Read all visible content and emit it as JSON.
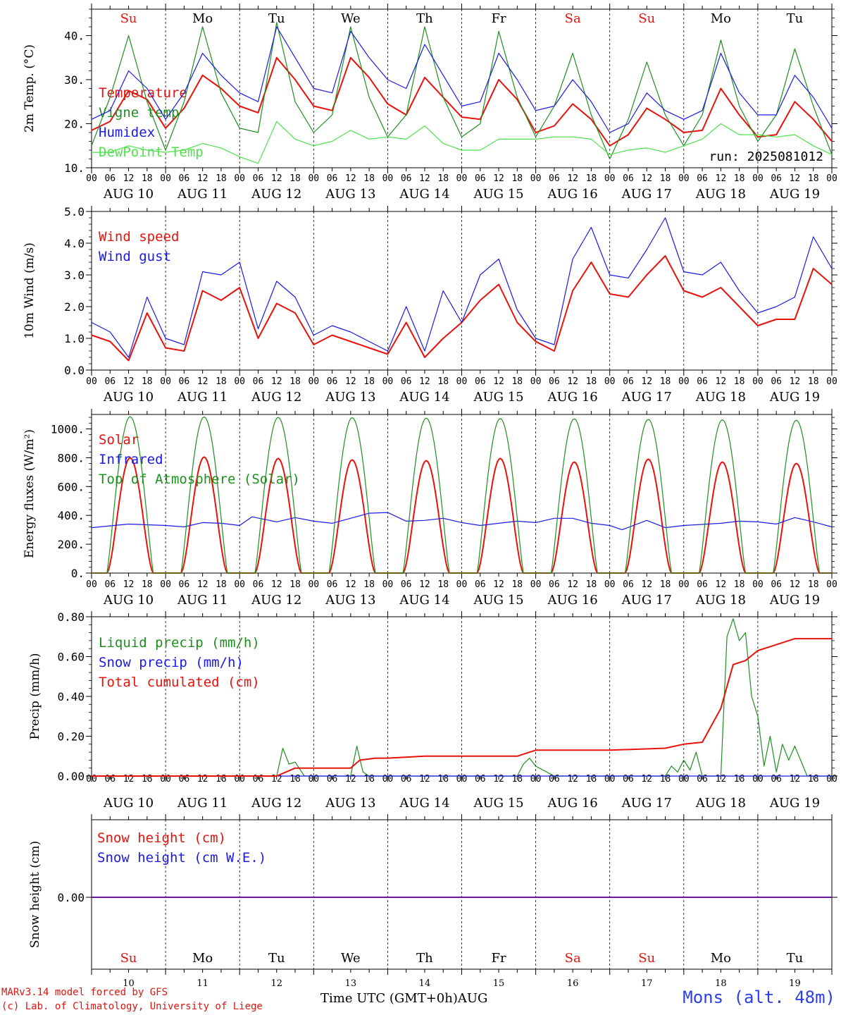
{
  "colors": {
    "red": "#e8120c",
    "green": "#1e8f1e",
    "blue": "#1a1ae6",
    "lightgreen": "#4ee24e",
    "weekend": "#e8120c",
    "weekday": "#000000"
  },
  "days": [
    "Su",
    "Mo",
    "Tu",
    "We",
    "Th",
    "Fr",
    "Sa",
    "Su",
    "Mo",
    "Tu"
  ],
  "weekend_flags": [
    true,
    false,
    false,
    false,
    false,
    false,
    true,
    true,
    false,
    false
  ],
  "date_labels": [
    "AUG 10",
    "AUG 11",
    "AUG 12",
    "AUG 13",
    "AUG 14",
    "AUG 15",
    "AUG 16",
    "AUG 17",
    "AUG 18",
    "AUG 19"
  ],
  "hour_ticks": [
    "00",
    "06",
    "12",
    "18"
  ],
  "end_tick": "00",
  "bottom_day_numbers": [
    "10",
    "11",
    "12",
    "13",
    "14",
    "15",
    "16",
    "17",
    "18",
    "19"
  ],
  "footer": {
    "model_line": "MARv3.14 model forced by GFS",
    "credit_line": "(c) Lab. of Climatology, University of Liege",
    "xlabel": "Time UTC (GMT+0h)",
    "month": "AUG",
    "station": "Mons (alt. 48m)"
  },
  "chart_data": [
    {
      "type": "line",
      "ylabel": "2m Temp. (°C)",
      "ylim": [
        10,
        46
      ],
      "yticks": [
        "10.",
        "20.",
        "30.",
        "40."
      ],
      "ytick_values": [
        10,
        20,
        30,
        40
      ],
      "annotation": "run: 2025081012",
      "x_unit": "hours since AUG 10 00 UTC",
      "x": [
        0,
        6,
        12,
        18,
        24,
        30,
        36,
        42,
        48,
        54,
        60,
        66,
        72,
        78,
        84,
        90,
        96,
        102,
        108,
        114,
        120,
        126,
        132,
        138,
        144,
        150,
        156,
        162,
        168,
        174,
        180,
        186,
        192,
        198,
        204,
        210,
        216,
        222,
        228,
        234,
        240
      ],
      "series": [
        {
          "name": "Temperature",
          "color": "red",
          "values": [
            18.5,
            20.5,
            27.5,
            25.5,
            19,
            23.5,
            31,
            28,
            24,
            22.5,
            35,
            30,
            24,
            23,
            35,
            30.5,
            24.5,
            22,
            30.5,
            26,
            21.5,
            21,
            30,
            25.5,
            18,
            19.5,
            24.5,
            21,
            15,
            17.5,
            23.5,
            21,
            18,
            18.5,
            28,
            22,
            17,
            17.5,
            25,
            21,
            16
          ]
        },
        {
          "name": "Vigne temp",
          "color": "green",
          "values": [
            15,
            26,
            40,
            25,
            14,
            25,
            42,
            27,
            19,
            18,
            43,
            25,
            18,
            22,
            42,
            26,
            17,
            22,
            42,
            26,
            17,
            20,
            41,
            26,
            17,
            24,
            36,
            22,
            12,
            21,
            34,
            22,
            15,
            22,
            39,
            24,
            16,
            22,
            37,
            24,
            13
          ]
        },
        {
          "name": "Humidex",
          "color": "blue",
          "values": [
            21,
            23,
            32,
            28,
            21,
            27,
            36,
            31,
            27,
            25,
            42,
            35,
            28,
            27,
            41,
            35,
            30,
            28,
            38,
            31,
            24,
            25,
            36,
            30,
            23,
            24,
            30,
            25,
            18,
            20,
            27,
            23,
            21,
            23,
            36,
            27,
            22,
            22,
            31,
            26,
            19
          ]
        },
        {
          "name": "DewPoint Temp",
          "color": "lightgreen",
          "values": [
            13.5,
            13.5,
            15,
            14,
            13.5,
            14,
            15.5,
            14.5,
            12.5,
            11,
            20.5,
            16.5,
            15,
            16,
            18.5,
            16.5,
            17,
            16.5,
            19.5,
            15.5,
            14,
            14,
            16.5,
            16.5,
            16.5,
            17,
            17,
            16.5,
            13,
            14,
            14.5,
            13.5,
            15,
            16.5,
            20,
            17.5,
            17.5,
            17,
            17.5,
            15,
            13
          ]
        }
      ]
    },
    {
      "type": "line",
      "ylabel": "10m Wind (m/s)",
      "ylim": [
        0,
        5
      ],
      "yticks": [
        "0.0",
        "1.0",
        "2.0",
        "3.0",
        "4.0",
        "5.0"
      ],
      "ytick_values": [
        0,
        1,
        2,
        3,
        4,
        5
      ],
      "x_unit": "hours since AUG 10 00 UTC",
      "x": [
        0,
        6,
        12,
        18,
        24,
        30,
        36,
        42,
        48,
        54,
        60,
        66,
        72,
        78,
        84,
        90,
        96,
        102,
        108,
        114,
        120,
        126,
        132,
        138,
        144,
        150,
        156,
        162,
        168,
        174,
        180,
        186,
        192,
        198,
        204,
        210,
        216,
        222,
        228,
        234,
        240
      ],
      "series": [
        {
          "name": "Wind speed",
          "color": "red",
          "values": [
            1.1,
            0.9,
            0.3,
            1.8,
            0.7,
            0.6,
            2.5,
            2.2,
            2.6,
            1.0,
            2.1,
            1.8,
            0.8,
            1.1,
            0.9,
            0.7,
            0.5,
            1.5,
            0.4,
            1.0,
            1.5,
            2.2,
            2.7,
            1.5,
            0.9,
            0.6,
            2.5,
            3.4,
            2.4,
            2.3,
            3.0,
            3.6,
            2.5,
            2.3,
            2.6,
            2.0,
            1.4,
            1.6,
            1.6,
            3.2,
            2.7
          ]
        },
        {
          "name": "Wind gust",
          "color": "blue",
          "values": [
            1.5,
            1.2,
            0.4,
            2.3,
            1.0,
            0.8,
            3.1,
            3.0,
            3.4,
            1.3,
            2.8,
            2.3,
            1.1,
            1.4,
            1.2,
            0.9,
            0.6,
            2.0,
            0.6,
            2.5,
            1.5,
            3.0,
            3.5,
            1.9,
            1.0,
            0.8,
            3.5,
            4.5,
            3.0,
            2.9,
            3.8,
            4.8,
            3.1,
            3.0,
            3.4,
            2.5,
            1.8,
            2.0,
            2.3,
            4.2,
            3.2
          ]
        }
      ]
    },
    {
      "type": "line",
      "ylabel": "Energy fluxes (W/m²)",
      "ylim": [
        0,
        1100
      ],
      "yticks": [
        "0.",
        "200.",
        "400.",
        "600.",
        "800.",
        "1000."
      ],
      "ytick_values": [
        0,
        200,
        400,
        600,
        800,
        1000
      ],
      "x_unit": "hours since AUG 10 00 UTC",
      "peaks": {
        "solar": [
          800,
          805,
          795,
          785,
          780,
          795,
          770,
          790,
          770,
          760
        ],
        "toa": [
          1085,
          1083,
          1080,
          1078,
          1075,
          1072,
          1070,
          1066,
          1063,
          1060
        ]
      },
      "daylight_hours": [
        5,
        20
      ],
      "series": [
        {
          "name": "Solar",
          "color": "red",
          "values": []
        },
        {
          "name": "Infrared",
          "color": "blue",
          "x": [
            0,
            12,
            24,
            30,
            36,
            42,
            48,
            52,
            60,
            66,
            72,
            78,
            84,
            90,
            96,
            102,
            108,
            114,
            120,
            126,
            132,
            138,
            144,
            150,
            156,
            162,
            168,
            172,
            180,
            186,
            192,
            196,
            204,
            210,
            216,
            222,
            228,
            234,
            240
          ],
          "values": [
            315,
            340,
            330,
            320,
            350,
            345,
            330,
            390,
            355,
            385,
            360,
            345,
            380,
            415,
            420,
            360,
            365,
            380,
            350,
            330,
            345,
            360,
            350,
            380,
            380,
            345,
            330,
            300,
            365,
            315,
            330,
            335,
            345,
            360,
            355,
            340,
            385,
            355,
            320
          ]
        },
        {
          "name": "Top of Atmosphere (Solar)",
          "color": "green",
          "values": []
        }
      ]
    },
    {
      "type": "line",
      "ylabel": "Precip (mm/h)",
      "ylim": [
        0,
        0.8
      ],
      "yticks": [
        "0.00",
        "0.20",
        "0.40",
        "0.60",
        "0.80"
      ],
      "ytick_values": [
        0,
        0.2,
        0.4,
        0.6,
        0.8
      ],
      "x_unit": "hours since AUG 10 00 UTC",
      "series": [
        {
          "name": "Liquid precip (mm/h)",
          "color": "green",
          "x": [
            0,
            60,
            62,
            64,
            66,
            69,
            72,
            84,
            86,
            88,
            90,
            96,
            138,
            140,
            142,
            144,
            150,
            168,
            186,
            188,
            190,
            192,
            194,
            196,
            198,
            204,
            206,
            208,
            210,
            212,
            214,
            216,
            218,
            220,
            222,
            224,
            226,
            228,
            232,
            234,
            240
          ],
          "values": [
            0,
            0,
            0.14,
            0.06,
            0.07,
            0,
            0,
            0,
            0.15,
            0.02,
            0,
            0,
            0,
            0.06,
            0.09,
            0.05,
            0,
            0,
            0,
            0.05,
            0.02,
            0.08,
            0.03,
            0.12,
            0,
            0,
            0.7,
            0.79,
            0.68,
            0.72,
            0.4,
            0.3,
            0.05,
            0.2,
            0.02,
            0.16,
            0.08,
            0.15,
            0,
            0,
            0
          ]
        },
        {
          "name": "Snow precip (mm/h)",
          "color": "blue",
          "x": [
            0,
            240
          ],
          "values": [
            0,
            0
          ]
        },
        {
          "name": "Total cumulated (cm)",
          "color": "red",
          "x": [
            0,
            60,
            66,
            72,
            84,
            87,
            92,
            96,
            108,
            120,
            138,
            144,
            150,
            168,
            186,
            192,
            198,
            204,
            208,
            212,
            216,
            220,
            228,
            240
          ],
          "values": [
            0,
            0,
            0.04,
            0.04,
            0.04,
            0.08,
            0.09,
            0.09,
            0.1,
            0.1,
            0.1,
            0.13,
            0.13,
            0.13,
            0.14,
            0.16,
            0.17,
            0.34,
            0.56,
            0.58,
            0.63,
            0.65,
            0.69,
            0.69
          ]
        }
      ]
    },
    {
      "type": "line",
      "ylabel": "Snow height (cm)",
      "yticks": [
        "0.00"
      ],
      "ytick_values": [
        0
      ],
      "x_unit": "hours since AUG 10 00 UTC",
      "series": [
        {
          "name": "Snow height (cm)",
          "color": "red",
          "x": [
            0,
            240
          ],
          "values": [
            0,
            0
          ]
        },
        {
          "name": "Snow height (cm W.E.)",
          "color": "blue",
          "x": [
            0,
            240
          ],
          "values": [
            0,
            0
          ]
        }
      ]
    }
  ]
}
